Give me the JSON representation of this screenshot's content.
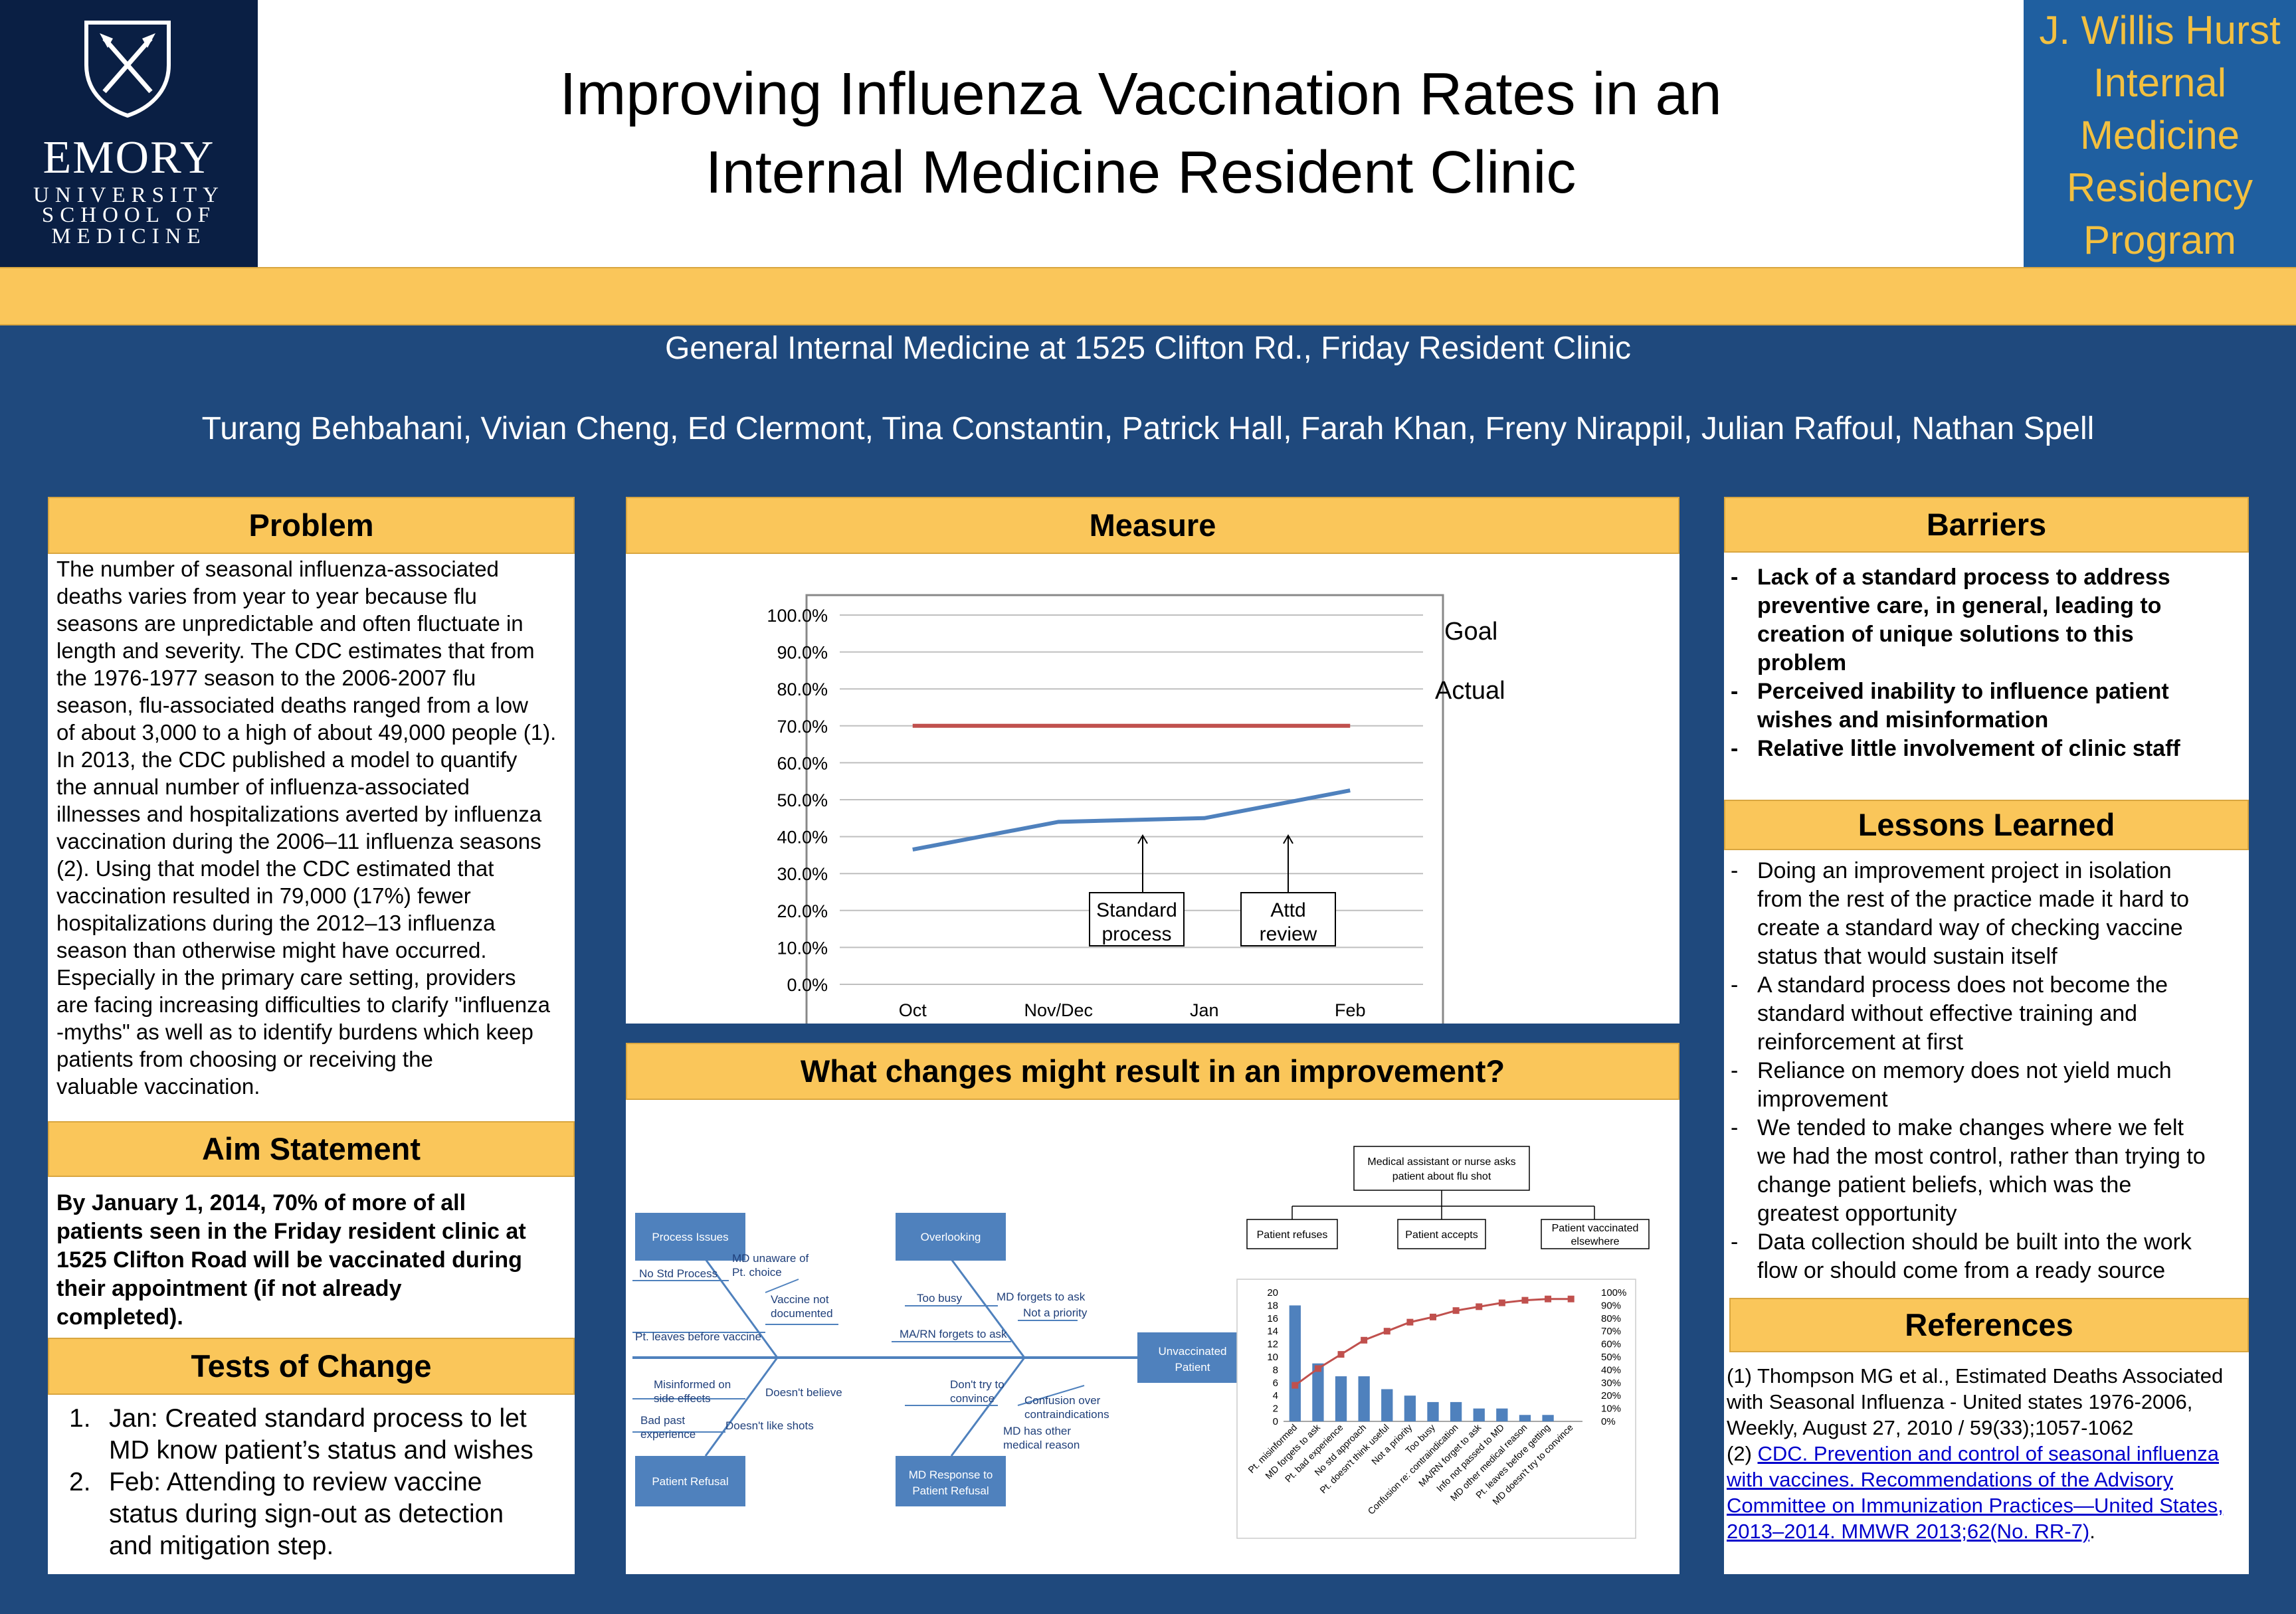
{
  "header": {
    "logo": {
      "line1": "EMORY",
      "line2": "UNIVERSITY",
      "line3": "SCHOOL OF",
      "line4": "MEDICINE"
    },
    "title_line1": "Improving Influenza Vaccination Rates in an",
    "title_line2": "Internal Medicine Resident Clinic",
    "program_lines": [
      "J. Willis Hurst",
      "Internal",
      "Medicine",
      "Residency",
      "Program"
    ]
  },
  "subtitle": "General Internal Medicine at 1525 Clifton Rd., Friday Resident Clinic",
  "authors": "Turang Behbahani, Vivian Cheng, Ed Clermont, Tina Constantin, Patrick Hall, Farah Khan, Freny Nirappil, Julian Raffoul, Nathan Spell",
  "problem": {
    "heading": "Problem",
    "lines": [
      "The number of seasonal influenza-associated",
      "deaths varies from year to year because flu",
      "seasons are unpredictable and often fluctuate in",
      "length and severity. The CDC estimates that from",
      "the 1976-1977 season to the 2006-2007 flu",
      "season, flu-associated deaths ranged from a low",
      "of about 3,000 to a high of about 49,000 people (1).",
      "In 2013, the CDC published a model to quantify",
      "the annual number of influenza-associated",
      "illnesses and hospitalizations averted by influenza",
      "vaccination during the 2006–11 influenza seasons",
      "(2). Using that model the CDC estimated that",
      "vaccination resulted in 79,000 (17%) fewer",
      "hospitalizations during the 2012–13 influenza",
      "season than otherwise might have occurred.",
      "Especially in the primary care setting, providers",
      "are facing increasing difficulties to clarify \"influenza",
      "-myths\" as well as to identify burdens which keep",
      "patients from choosing or receiving the",
      "valuable vaccination."
    ]
  },
  "aim": {
    "heading": "Aim Statement",
    "lines": [
      "By January 1, 2014, 70% of more of all",
      "patients seen in the Friday resident clinic at",
      "1525 Clifton Road will be vaccinated during",
      "their appointment (if not already",
      "completed)."
    ]
  },
  "tests": {
    "heading": "Tests of Change",
    "items": [
      {
        "num": "1.",
        "lines": [
          "Jan:  Created standard process to let",
          "MD know patient’s status and wishes"
        ]
      },
      {
        "num": "2.",
        "lines": [
          "Feb:  Attending to review vaccine",
          "status during sign-out as detection",
          "and mitigation step."
        ]
      }
    ]
  },
  "measure": {
    "heading": "Measure",
    "goal_label": "Goal",
    "actual_label": "Actual",
    "annotation1": [
      "Standard",
      "process"
    ],
    "annotation2": [
      "Attd",
      "review"
    ]
  },
  "chart_data": [
    {
      "type": "line",
      "categories": [
        "Oct",
        "Nov/Dec",
        "Jan",
        "Feb"
      ],
      "series": [
        {
          "name": "Goal",
          "values": [
            70,
            70,
            70,
            70
          ],
          "color": "#c0504d"
        },
        {
          "name": "Actual",
          "values": [
            36.5,
            44,
            45,
            52.5
          ],
          "color": "#4f81bd"
        }
      ],
      "ylim": [
        0,
        100
      ],
      "yticks": [
        "0.0%",
        "10.0%",
        "20.0%",
        "30.0%",
        "40.0%",
        "50.0%",
        "60.0%",
        "70.0%",
        "80.0%",
        "90.0%",
        "100.0%"
      ]
    },
    {
      "type": "bar",
      "categories": [
        "Pt. misinformed",
        "MD forgets to ask",
        "Pt. bad experience",
        "No std approach",
        "Pt. doesn't think useful",
        "Not a priority",
        "Too busy",
        "Confusion re: contraindication",
        "MA/RN forget to ask",
        "Info not passed to MD",
        "MD other medical reason",
        "Pt. leaves before getting",
        "MD doesn't try to convince"
      ],
      "values": [
        18,
        9,
        7,
        7,
        5,
        4,
        3,
        3,
        2,
        2,
        1,
        1,
        0
      ],
      "cumulative_pct": [
        28,
        41,
        52,
        63,
        70,
        77,
        81,
        86,
        89,
        92,
        94,
        95,
        95
      ],
      "ylim": [
        0,
        20
      ],
      "yticks": [
        "0",
        "2",
        "4",
        "6",
        "8",
        "10",
        "12",
        "14",
        "16",
        "18",
        "20"
      ],
      "y2ticks": [
        "0%",
        "10%",
        "20%",
        "30%",
        "40%",
        "50%",
        "60%",
        "70%",
        "80%",
        "90%",
        "100%"
      ],
      "bar_color": "#4f81bd",
      "line_color": "#c0504d"
    }
  ],
  "changes": {
    "heading": "What changes might result in an improvement?",
    "fishbone": {
      "process_issues": "Process Issues",
      "overlooking": "Overlooking",
      "patient_refusal": "Patient Refusal",
      "md_response": [
        "MD Response to",
        "Patient Refusal"
      ],
      "unvaccinated": [
        "Unvaccinated",
        "Patient"
      ],
      "causes": {
        "md_unaware": [
          "MD unaware of",
          "Pt. choice"
        ],
        "no_std_process": "No Std Process",
        "vaccine_not_documented": [
          "Vaccine not",
          "documented"
        ],
        "pt_leaves": "Pt. leaves before vaccine",
        "too_busy": "Too busy",
        "md_forgets": "MD forgets to ask",
        "not_priority": "Not a priority",
        "ma_rn_forgets": "MA/RN forgets to ask",
        "misinformed": [
          "Misinformed on",
          "side effects"
        ],
        "doesnt_believe": "Doesn't believe",
        "bad_past": [
          "Bad past",
          "experience"
        ],
        "doesnt_like_shots": "Doesn't like shots",
        "dont_try": [
          "Don't try to",
          "convince"
        ],
        "confusion": [
          "Confusion over",
          "contraindications"
        ],
        "md_other_reason": [
          "MD has other",
          "medical reason"
        ]
      }
    },
    "flow": {
      "top": [
        "Medical assistant or nurse asks",
        "patient about flu shot"
      ],
      "refuses": "Patient refuses",
      "accepts": "Patient accepts",
      "elsewhere": [
        "Patient vaccinated",
        "elsewhere"
      ]
    }
  },
  "barriers": {
    "heading": "Barriers",
    "items": [
      [
        "Lack of a standard process to address",
        "preventive care, in general, leading to",
        "creation of unique solutions to this",
        "problem"
      ],
      [
        "Perceived inability to influence patient",
        "wishes and misinformation"
      ],
      [
        "Relative little involvement of clinic staff"
      ]
    ]
  },
  "lessons": {
    "heading": "Lessons Learned",
    "items": [
      [
        "Doing an improvement project in isolation",
        "from the rest of the practice made it hard to",
        "create a standard way of checking vaccine",
        "status that would sustain itself"
      ],
      [
        "A standard process does not become the",
        "standard without effective training and",
        "reinforcement at first"
      ],
      [
        "Reliance on memory does not yield much",
        "improvement"
      ],
      [
        "We tended to make changes where we felt",
        "we had the most control, rather than trying to",
        "change patient beliefs, which was the",
        "greatest opportunity"
      ],
      [
        "Data collection should be built into the work",
        "flow or should come from a ready source"
      ]
    ]
  },
  "references": {
    "heading": "References",
    "ref1_lines": [
      "(1) Thompson MG et al., Estimated Deaths Associated",
      "with Seasonal Influenza - United states 1976-2006,",
      "Weekly, August 27, 2010 / 59(33);1057-1062"
    ],
    "ref2_prefix": "(2) ",
    "ref2_link_lines": [
      "CDC. Prevention and control of seasonal influenza",
      "with vaccines. Recommendations of the Advisory",
      "Committee on Immunization Practices—United States,",
      "2013–2014. MMWR 2013;62(No. RR-7)"
    ],
    "ref2_suffix": "."
  }
}
